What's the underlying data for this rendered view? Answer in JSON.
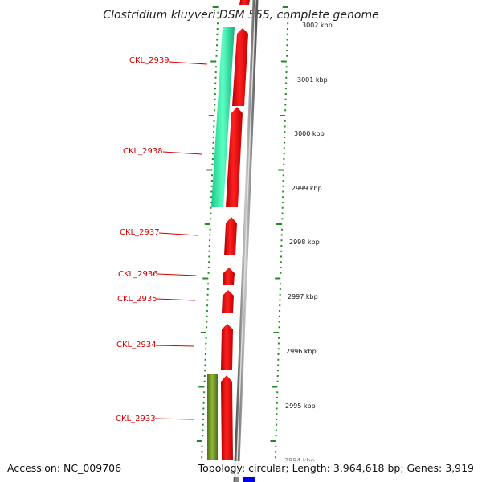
{
  "title": "Clostridium kluyveri DSM 555, complete genome",
  "accession": "Accession: NC_009706",
  "summary": "Topology: circular; Length: 3,964,618 bp; Genes: 3,919",
  "scale_labels": [
    "3002 kbp",
    "3001 kbp",
    "3000 kbp",
    "2999 kbp",
    "2998 kbp",
    "2997 kbp",
    "2996 kbp",
    "2995 kbp",
    "2994 kbp"
  ],
  "genes": [
    {
      "label": "CKL_2939"
    },
    {
      "label": "CKL_2938"
    },
    {
      "label": "CKL_2937"
    },
    {
      "label": "CKL_2936"
    },
    {
      "label": "CKL_2935"
    },
    {
      "label": "CKL_2934"
    },
    {
      "label": "CKL_2933"
    }
  ],
  "colors": {
    "cds": "#ff0000",
    "feature_light": "#1de9a0",
    "feature_olive": "#6b8e23",
    "backbone": "#888888",
    "ticks": "#228b22",
    "labels": "#d40000",
    "marker": "#0000ee"
  }
}
